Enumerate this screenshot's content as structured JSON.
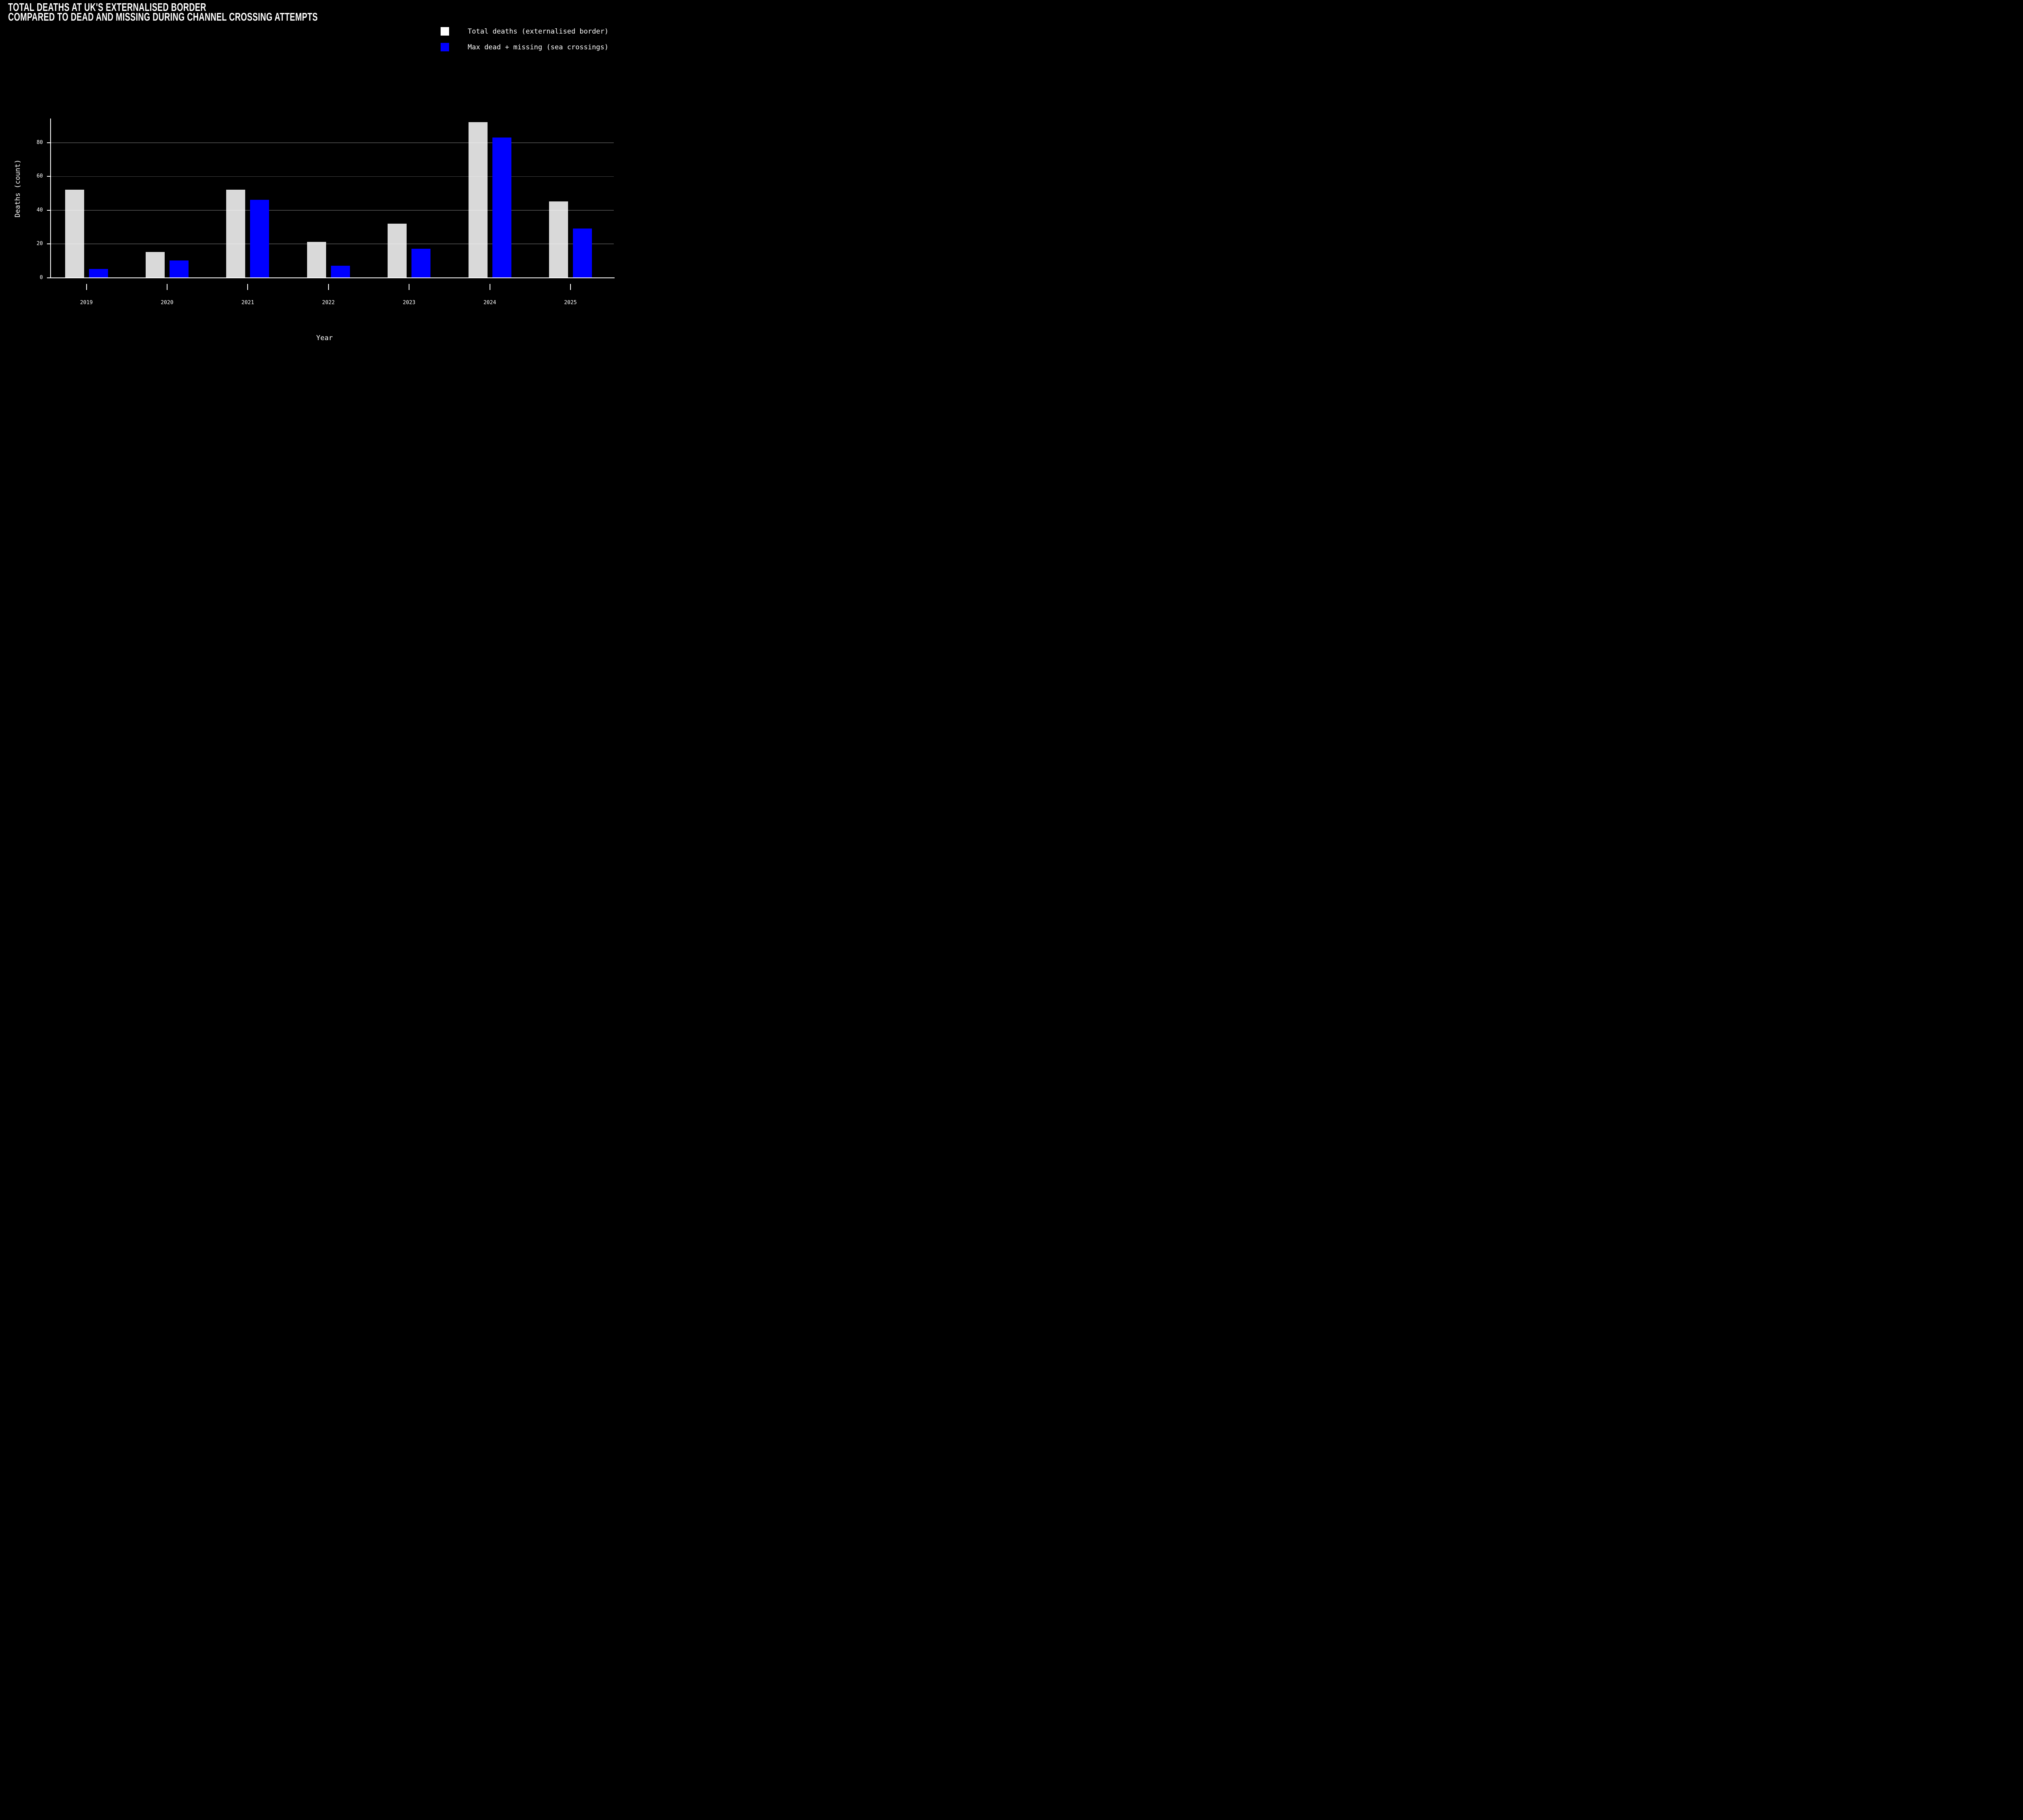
{
  "title": {
    "line1": "TOTAL DEATHS AT UK'S EXTERNALISED BORDER",
    "line2": "COMPARED TO DEAD AND MISSING DURING CHANNEL CROSSING ATTEMPTS"
  },
  "legend": {
    "items": [
      {
        "label": "Total deaths (externalised border)",
        "color": "#ffffff"
      },
      {
        "label": "Max dead + missing (sea crossings)",
        "color": "#0000ff"
      }
    ]
  },
  "chart_data": {
    "type": "bar",
    "title": "TOTAL DEATHS AT UK'S EXTERNALISED BORDER COMPARED TO DEAD AND MISSING DURING CHANNEL CROSSING ATTEMPTS",
    "categories": [
      "2019",
      "2020",
      "2021",
      "2022",
      "2023",
      "2024",
      "2025"
    ],
    "series": [
      {
        "name": "Total deaths (externalised border)",
        "color": "rgba(255,255,255,0.85)",
        "values": [
          52,
          15,
          52,
          21,
          32,
          92,
          45
        ]
      },
      {
        "name": "Max dead + missing (sea crossings)",
        "color": "#0000ff",
        "values": [
          5,
          10,
          46,
          7,
          17,
          83,
          29
        ]
      }
    ],
    "xlabel": "Year",
    "ylabel": "Deaths (count)",
    "yticks": [
      0,
      20,
      40,
      60,
      80
    ],
    "ylim": [
      0,
      95
    ],
    "grid": true,
    "gridline_color": "#424242",
    "legend_position": "top-right",
    "background": "#000000",
    "text_color": "#ffffff"
  }
}
